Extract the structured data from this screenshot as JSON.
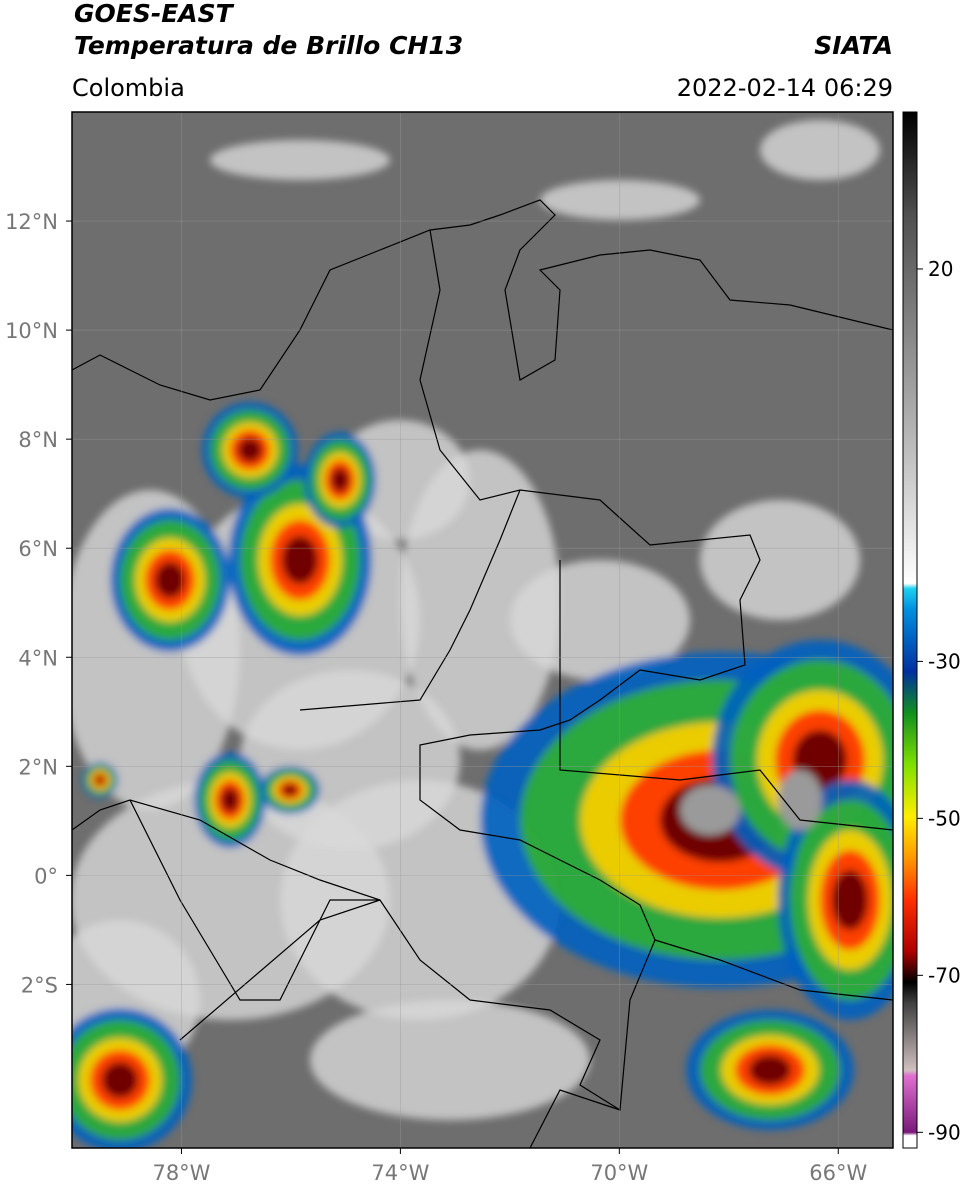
{
  "header": {
    "title": "GOES-EAST",
    "subtitle": "Temperatura de Brillo CH13",
    "source": "SIATA",
    "region": "Colombia",
    "datetime": "2022-02-14 06:29"
  },
  "map": {
    "xlim": [
      -80,
      -65
    ],
    "ylim": [
      -5,
      14
    ],
    "xticks": [
      {
        "value": -78,
        "label": "78°W"
      },
      {
        "value": -74,
        "label": "74°W"
      },
      {
        "value": -70,
        "label": "70°W"
      },
      {
        "value": -66,
        "label": "66°W"
      }
    ],
    "yticks": [
      {
        "value": 12,
        "label": "12°N"
      },
      {
        "value": 10,
        "label": "10°N"
      },
      {
        "value": 8,
        "label": "8°N"
      },
      {
        "value": 6,
        "label": "6°N"
      },
      {
        "value": 4,
        "label": "4°N"
      },
      {
        "value": 2,
        "label": "2°N"
      },
      {
        "value": 0,
        "label": "0°"
      },
      {
        "value": -2,
        "label": "2°S"
      }
    ],
    "grid": true
  },
  "colorbar": {
    "lim": [
      -92,
      40
    ],
    "ticks": [
      20,
      -30,
      -50,
      -70,
      -90
    ]
  }
}
